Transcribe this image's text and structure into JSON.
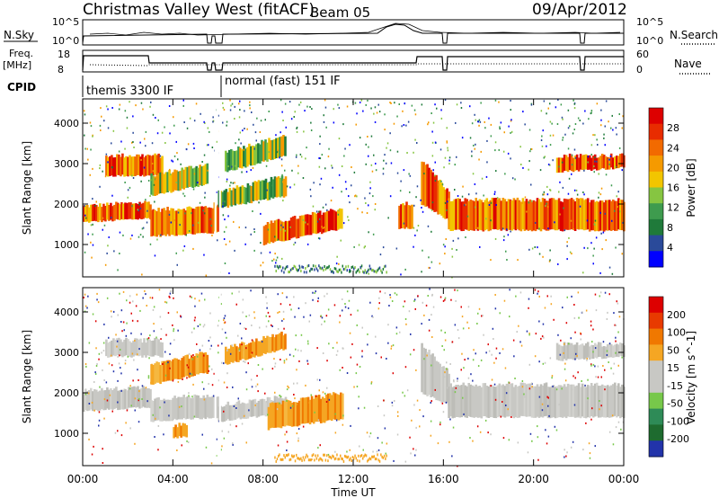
{
  "header": {
    "title": "Christmas Valley West (fitACF)",
    "beam": "Beam 05",
    "date": "09/Apr/2012"
  },
  "top_panel": {
    "nsky_label": "N.Sky",
    "nsearch_label": "N.Search",
    "left_ticks": [
      "10^5",
      "10^0"
    ],
    "right_ticks": [
      "10^5",
      "10^0"
    ],
    "freq_label_1": "Freq.",
    "freq_label_2": "[MHz]",
    "freq_ticks": [
      "18",
      "8"
    ],
    "nave_ticks": [
      "60",
      "0"
    ],
    "nave_label": "Nave",
    "cpid_label": "CPID",
    "cpid_modes": [
      "themis 3300 IF",
      "normal (fast) 151 IF"
    ]
  },
  "chart_data": [
    {
      "type": "heatmap",
      "ylabel": "Slant Range [km]",
      "yticks": [
        "4000",
        "3000",
        "2000",
        "1000"
      ],
      "ylim": [
        200,
        4600
      ],
      "xlim": [
        "00:00",
        "24:00"
      ],
      "colorbar": {
        "label": "Power [dB]",
        "ticks": [
          "28",
          "24",
          "20",
          "16",
          "12",
          "8",
          "4"
        ],
        "colors": [
          "#0000ff",
          "#2a4a9a",
          "#1f7a3a",
          "#3e9b4e",
          "#86c541",
          "#f2c500",
          "#f59a00",
          "#f26a00",
          "#e82c00",
          "#dd0000"
        ]
      },
      "bands": [
        {
          "t0": 0.0,
          "t1": 3.0,
          "r0": 1550,
          "r1": 1650,
          "r2": 1950,
          "r3": 2050,
          "level": "strong"
        },
        {
          "t0": 3.0,
          "t1": 6.0,
          "r0": 1200,
          "r1": 1300,
          "r2": 1850,
          "r3": 1950,
          "level": "strong"
        },
        {
          "t0": 1.0,
          "t1": 3.5,
          "r0": 2700,
          "r1": 2700,
          "r2": 3200,
          "r3": 3200,
          "level": "strong"
        },
        {
          "t0": 3.0,
          "t1": 5.5,
          "r0": 2200,
          "r1": 2500,
          "r2": 2700,
          "r3": 3000,
          "level": "medium"
        },
        {
          "t0": 6.0,
          "t1": 9.0,
          "r0": 1900,
          "r1": 2200,
          "r2": 2300,
          "r3": 2700,
          "level": "medium"
        },
        {
          "t0": 6.3,
          "t1": 9.0,
          "r0": 2800,
          "r1": 3200,
          "r2": 3300,
          "r3": 3700,
          "level": "medium"
        },
        {
          "t0": 8.0,
          "t1": 11.5,
          "r0": 1000,
          "r1": 1400,
          "r2": 1500,
          "r3": 1900,
          "level": "strong"
        },
        {
          "t0": 15.0,
          "t1": 16.2,
          "r0": 2000,
          "r1": 1600,
          "r2": 3100,
          "r3": 2300,
          "level": "strong"
        },
        {
          "t0": 16.2,
          "t1": 24.0,
          "r0": 1350,
          "r1": 1350,
          "r2": 2100,
          "r3": 2100,
          "level": "strong"
        },
        {
          "t0": 21.0,
          "t1": 24.0,
          "r0": 2800,
          "r1": 2900,
          "r2": 3200,
          "r3": 3200,
          "level": "strong"
        },
        {
          "t0": 14.0,
          "t1": 14.6,
          "r0": 1400,
          "r1": 1400,
          "r2": 2000,
          "r3": 2000,
          "level": "strong"
        }
      ]
    },
    {
      "type": "heatmap",
      "ylabel": "Slant Range [km]",
      "yticks": [
        "4000",
        "3000",
        "2000",
        "1000"
      ],
      "ylim": [
        200,
        4600
      ],
      "xlim": [
        "00:00",
        "24:00"
      ],
      "xlabel": "Time UT",
      "xticks": [
        "00:00",
        "04:00",
        "08:00",
        "12:00",
        "16:00",
        "20:00",
        "00:00"
      ],
      "colorbar": {
        "label": "Velocity [m s^-1]",
        "ticks": [
          "200",
          "100",
          "50",
          "15",
          "-15",
          "-50",
          "-100",
          "-200"
        ],
        "colors": [
          "#2233aa",
          "#1e6b2f",
          "#2e8b57",
          "#77c84a",
          "#c8c8c4",
          "#c8c8c4",
          "#f5a623",
          "#f07800",
          "#e83a00",
          "#dd0000"
        ]
      },
      "bands": [
        {
          "t0": 0.0,
          "t1": 3.0,
          "r0": 1550,
          "r1": 1650,
          "r2": 2050,
          "r3": 2150,
          "level": "grey"
        },
        {
          "t0": 3.0,
          "t1": 6.0,
          "r0": 1300,
          "r1": 1400,
          "r2": 1850,
          "r3": 1950,
          "level": "grey"
        },
        {
          "t0": 1.0,
          "t1": 3.5,
          "r0": 2900,
          "r1": 2900,
          "r2": 3300,
          "r3": 3300,
          "level": "grey"
        },
        {
          "t0": 3.0,
          "t1": 5.5,
          "r0": 2200,
          "r1": 2500,
          "r2": 2700,
          "r3": 3000,
          "level": "orange"
        },
        {
          "t0": 6.0,
          "t1": 9.0,
          "r0": 1300,
          "r1": 1500,
          "r2": 1700,
          "r3": 1900,
          "level": "grey"
        },
        {
          "t0": 6.3,
          "t1": 9.0,
          "r0": 2700,
          "r1": 3100,
          "r2": 3100,
          "r3": 3500,
          "level": "orange"
        },
        {
          "t0": 8.2,
          "t1": 11.5,
          "r0": 1100,
          "r1": 1350,
          "r2": 1700,
          "r3": 2000,
          "level": "orange"
        },
        {
          "t0": 15.0,
          "t1": 16.2,
          "r0": 2000,
          "r1": 1700,
          "r2": 3200,
          "r3": 2500,
          "level": "grey"
        },
        {
          "t0": 16.2,
          "t1": 24.0,
          "r0": 1400,
          "r1": 1400,
          "r2": 2200,
          "r3": 2200,
          "level": "grey"
        },
        {
          "t0": 21.0,
          "t1": 24.0,
          "r0": 2800,
          "r1": 2900,
          "r2": 3200,
          "r3": 3200,
          "level": "grey"
        },
        {
          "t0": 4.0,
          "t1": 4.6,
          "r0": 900,
          "r1": 900,
          "r2": 1200,
          "r3": 1200,
          "level": "orange"
        }
      ]
    }
  ]
}
